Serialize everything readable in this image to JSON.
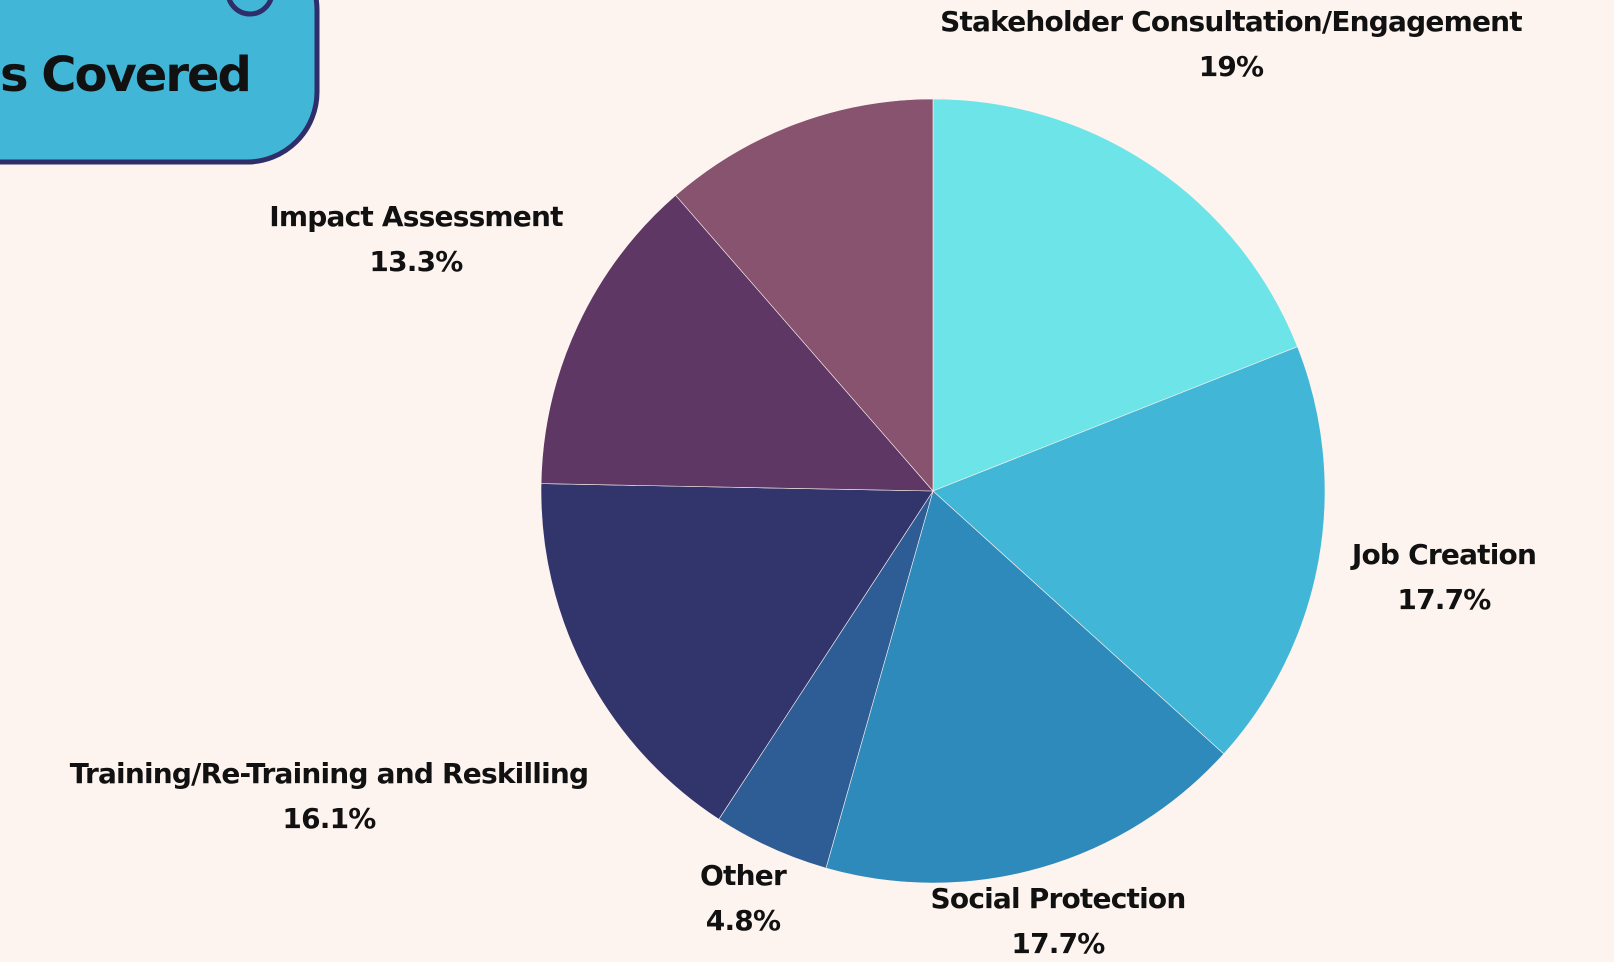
{
  "chart_data": {
    "type": "pie",
    "title": "s Covered",
    "categories": [
      "Stakeholder Consultation/Engagement",
      "Job Creation",
      "Social Protection",
      "Other",
      "Training/Re-Training and Reskilling",
      "Impact Assessment",
      null
    ],
    "values": [
      19,
      17.7,
      17.7,
      4.8,
      16.1,
      13.3,
      11.4
    ],
    "value_labels": [
      "19%",
      "17.7%",
      "17.7%",
      "4.8%",
      "16.1%",
      "13.3%",
      null
    ],
    "colors": [
      "#6ce4e8",
      "#42b6d6",
      "#2e8aba",
      "#2e5c94",
      "#32346c",
      "#5e3764",
      "#87536f"
    ]
  }
}
